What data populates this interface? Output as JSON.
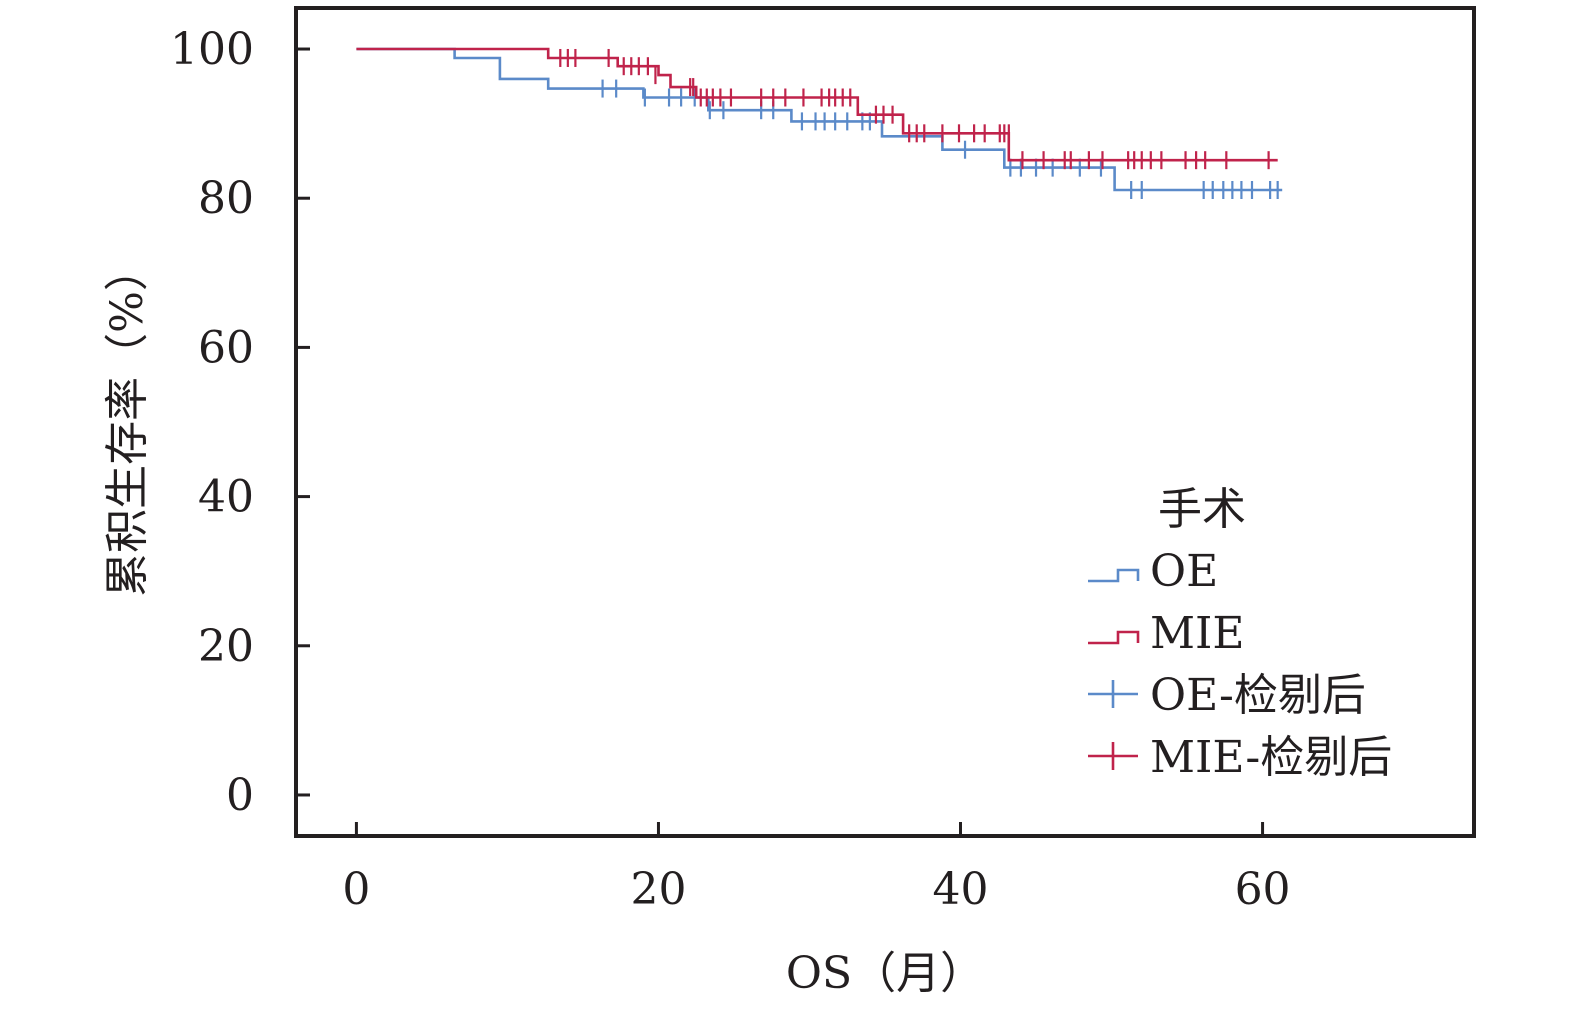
{
  "chart_data": {
    "type": "line",
    "subtype": "kaplan-meier step",
    "title": "",
    "xlabel": "OS（月）",
    "ylabel": "累积生存率（%）",
    "xlim": [
      -4,
      74
    ],
    "ylim": [
      -5.5,
      105.5
    ],
    "xticks": [
      0,
      20,
      40,
      60
    ],
    "yticks": [
      0,
      20,
      40,
      60,
      80,
      100
    ],
    "xtick_labels": [
      "0",
      "20",
      "40",
      "60"
    ],
    "ytick_labels": [
      "0",
      "20",
      "40",
      "60",
      "80",
      "100"
    ],
    "grid": false,
    "legend_position": "bottom-right",
    "legend_title": "手术",
    "legend_entries": [
      {
        "label": "OE",
        "kind": "step",
        "color": "#5b8ac9"
      },
      {
        "label": "MIE",
        "kind": "step",
        "color": "#c0234b"
      },
      {
        "label": "OE-检剔后",
        "kind": "censor",
        "color": "#5b8ac9"
      },
      {
        "label": "MIE-检剔后",
        "kind": "censor",
        "color": "#c0234b"
      }
    ],
    "series": [
      {
        "name": "OE",
        "color": "#5b8ac9",
        "steps": [
          [
            0,
            100
          ],
          [
            6.5,
            98.8
          ],
          [
            9.5,
            96
          ],
          [
            12.7,
            94.7
          ],
          [
            19,
            93.5
          ],
          [
            23.3,
            91.8
          ],
          [
            28.8,
            90.3
          ],
          [
            34.8,
            88.3
          ],
          [
            38.8,
            86.5
          ],
          [
            42.9,
            84.1
          ],
          [
            50.2,
            81.1
          ],
          [
            61.3,
            81.1
          ]
        ],
        "censored": [
          [
            16.3,
            94.7
          ],
          [
            17.2,
            94.7
          ],
          [
            19.1,
            93.5
          ],
          [
            20.7,
            93.5
          ],
          [
            21.5,
            93.5
          ],
          [
            22.4,
            93.5
          ],
          [
            23.4,
            91.8
          ],
          [
            24.3,
            91.8
          ],
          [
            26.8,
            91.8
          ],
          [
            27.6,
            91.8
          ],
          [
            29.5,
            90.3
          ],
          [
            30.4,
            90.3
          ],
          [
            31,
            90.3
          ],
          [
            31.7,
            90.3
          ],
          [
            32.5,
            90.3
          ],
          [
            33.5,
            90.3
          ],
          [
            34,
            90.3
          ],
          [
            40.3,
            86.5
          ],
          [
            43.3,
            84.1
          ],
          [
            44,
            84.1
          ],
          [
            45,
            84.1
          ],
          [
            46.1,
            84.1
          ],
          [
            47.9,
            84.1
          ],
          [
            49.3,
            84.1
          ],
          [
            51.3,
            81.1
          ],
          [
            52,
            81.1
          ],
          [
            56.1,
            81.1
          ],
          [
            56.7,
            81.1
          ],
          [
            57.4,
            81.1
          ],
          [
            58,
            81.1
          ],
          [
            58.6,
            81.1
          ],
          [
            59.3,
            81.1
          ],
          [
            60.5,
            81.1
          ],
          [
            61,
            81.1
          ]
        ]
      },
      {
        "name": "MIE",
        "color": "#c0234b",
        "steps": [
          [
            0,
            100
          ],
          [
            12.7,
            98.8
          ],
          [
            17.3,
            97.7
          ],
          [
            20,
            96.5
          ],
          [
            20.8,
            94.9
          ],
          [
            22.5,
            93.5
          ],
          [
            33.2,
            91.2
          ],
          [
            36.2,
            88.7
          ],
          [
            43.2,
            85.1
          ],
          [
            61,
            85.1
          ]
        ],
        "censored": [
          [
            13.5,
            98.8
          ],
          [
            14,
            98.8
          ],
          [
            14.5,
            98.8
          ],
          [
            16.7,
            98.8
          ],
          [
            17.7,
            97.7
          ],
          [
            18.2,
            97.7
          ],
          [
            18.7,
            97.7
          ],
          [
            19.3,
            97.7
          ],
          [
            19.8,
            96.5
          ],
          [
            22.1,
            94.9
          ],
          [
            22.3,
            94.9
          ],
          [
            22.8,
            93.5
          ],
          [
            23.2,
            93.5
          ],
          [
            23.6,
            93.5
          ],
          [
            24.1,
            93.5
          ],
          [
            24.8,
            93.5
          ],
          [
            26.8,
            93.5
          ],
          [
            27.6,
            93.5
          ],
          [
            28.4,
            93.5
          ],
          [
            29.6,
            93.5
          ],
          [
            30.8,
            93.5
          ],
          [
            31.3,
            93.5
          ],
          [
            31.7,
            93.5
          ],
          [
            32.2,
            93.5
          ],
          [
            32.7,
            93.5
          ],
          [
            34.4,
            91.2
          ],
          [
            34.9,
            91.2
          ],
          [
            35.5,
            91.2
          ],
          [
            36.6,
            88.7
          ],
          [
            37.1,
            88.7
          ],
          [
            37.6,
            88.7
          ],
          [
            38.8,
            88.7
          ],
          [
            39.9,
            88.7
          ],
          [
            40.9,
            88.7
          ],
          [
            41.6,
            88.7
          ],
          [
            42.6,
            88.7
          ],
          [
            42.9,
            88.7
          ],
          [
            43.2,
            88.7
          ],
          [
            44.1,
            85.1
          ],
          [
            45.5,
            85.1
          ],
          [
            46.9,
            85.1
          ],
          [
            47.3,
            85.1
          ],
          [
            48.5,
            85.1
          ],
          [
            49.4,
            85.1
          ],
          [
            51.1,
            85.1
          ],
          [
            51.5,
            85.1
          ],
          [
            52,
            85.1
          ],
          [
            52.6,
            85.1
          ],
          [
            53.3,
            85.1
          ],
          [
            54.9,
            85.1
          ],
          [
            55.6,
            85.1
          ],
          [
            56.2,
            85.1
          ],
          [
            57.6,
            85.1
          ],
          [
            60.4,
            85.1
          ]
        ]
      }
    ]
  }
}
